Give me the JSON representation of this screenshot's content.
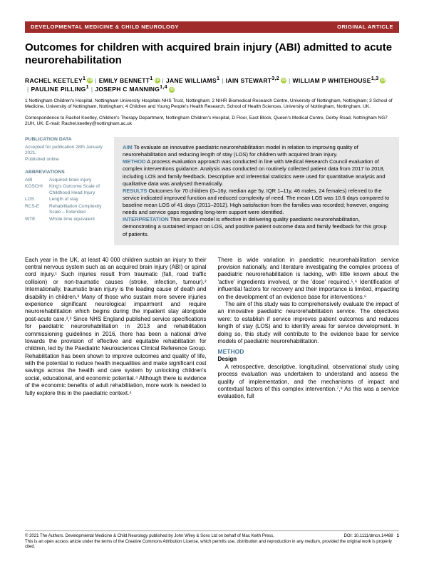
{
  "header": {
    "journal": "DEVELOPMENTAL MEDICINE & CHILD NEUROLOGY",
    "article_type": "ORIGINAL ARTICLE"
  },
  "title": "Outcomes for children with acquired brain injury (ABI) admitted to acute neurorehabilitation",
  "authors": [
    {
      "name": "RACHEL KEETLEY",
      "sup": "1",
      "orcid": true
    },
    {
      "name": "EMILY BENNETT",
      "sup": "1",
      "orcid": true
    },
    {
      "name": "JANE WILLIAMS",
      "sup": "1"
    },
    {
      "name": "IAIN STEWART",
      "sup": "3,2",
      "orcid": true
    },
    {
      "name": "WILLIAM P WHITEHOUSE",
      "sup": "1,3",
      "orcid": true
    },
    {
      "name": "PAULINE PILLING",
      "sup": "1"
    },
    {
      "name": "JOSEPH C MANNING",
      "sup": "1,4",
      "orcid": true
    }
  ],
  "affiliations": "1 Nottingham Children's Hospital, Nottingham University Hospitals NHS Trust, Nottingham; 2 NIHR Biomedical Research Centre, University of Nottingham, Nottingham; 3 School of Medicine, University of Nottingham, Nottingham; 4 Children and Young People's Health Research, School of Health Sciences, University of Nottingham, Nottingham, UK.",
  "correspondence": "Correspondence to Rachel Keetley, Children's Therapy Department, Nottingham Children's Hospital, D Floor, East Block, Queen's Medical Centre, Derby Road, Nottingham NG7 2UH, UK. E-mail: Rachel.keetley@nottingham.ac.uk",
  "sidebar": {
    "pub_heading": "PUBLICATION DATA",
    "pub_text": "Accepted for publication 28th January 2021.\nPublished online",
    "abbrev_heading": "ABBREVIATIONS",
    "abbrevs": [
      {
        "k": "ABI",
        "v": "Acquired brain injury"
      },
      {
        "k": "KOSCHI",
        "v": "King's Outcome Scale of Childhood Head Injury"
      },
      {
        "k": "LOS",
        "v": "Length of stay"
      },
      {
        "k": "RCS-E",
        "v": "Rehabilitation Complexity Scale – Extended"
      },
      {
        "k": "WTE",
        "v": "Whole time equivalent"
      }
    ]
  },
  "abstract": {
    "aim_label": "AIM",
    "aim": " To evaluate an innovative paediatric neurorehabilitation model in relation to improving quality of neurorehabilitation and reducing length of stay (LOS) for children with acquired brain injury.",
    "method_label": "METHOD",
    "method": " A process evaluation approach was conducted in line with Medical Research Council evaluation of complex interventions guidance. Analysis was conducted on routinely collected patient data from 2017 to 2018, including LOS and family feedback. Descriptive and inferential statistics were used for quantitative analysis and qualitative data was analysed thematically.",
    "results_label": "RESULTS",
    "results": " Outcomes for 70 children (0–16y, median age 5y, IQR 1–11y, 46 males, 24 females) referred to the service indicated improved function and reduced complexity of need. The mean LOS was 10.6 days compared to baseline mean LOS of 41 days (2011–2012). High satisfaction from the families was recorded; however, ongoing needs and service gaps regarding long-term support were identified.",
    "interp_label": "INTERPRETATION",
    "interp": " This service model is effective in delivering quality paediatric neurorehabilitation, demonstrating a sustained impact on LOS, and positive patient outcome data and family feedback for this group of patients."
  },
  "body": {
    "col1_p1": "Each year in the UK, at least 40 000 children sustain an injury to their central nervous system such as an acquired brain injury (ABI) or spinal cord injury.¹ Such injuries result from traumatic (fall, road traffic collision) or non-traumatic causes (stroke, infection, tumour).² Internationally, traumatic brain injury is the leading cause of death and disability in children.³ Many of those who sustain more severe injuries experience significant neurological impairment and require neurorehabilitation which begins during the inpatient stay alongside post-acute care.²,³ Since NHS England published service specifications for paediatric neurorehabilitation in 2013 and rehabilitation commissioning guidelines in 2016, there has been a national drive towards the provision of effective and equitable rehabilitation for children, led by the Paediatric Neurosciences Clinical Reference Group. Rehabilitation has been shown to improve outcomes and quality of life, with the potential to reduce health inequalities and make significant cost savings across the health and care system by unlocking children's social, educational, and economic potential.⁴ Although there is evidence of the economic benefits of adult rehabilitation, more work is needed to fully explore this in the paediatric context.⁴",
    "col2_p1": "There is wide variation in paediatric neurorehabilitation service provision nationally, and literature investigating the complex process of paediatric neurorehabilitation is lacking, with little known about the 'active' ingredients involved, or the 'dose' required.⁵,⁶ Identification of influential factors for recovery and their importance is limited, impacting on the development of an evidence base for interventions.⁶",
    "col2_p2": "The aim of this study was to comprehensively evaluate the impact of an innovative paediatric neurorehabilitation service. The objectives were: to establish if service improves patient outcomes and reduces length of stay (LOS) and to identify areas for service development. In doing so, this study will contribute to the evidence base for service models of paediatric neurorehabilitation.",
    "method_heading": "METHOD",
    "design_heading": "Design",
    "col2_p3": "A retrospective, descriptive, longitudinal, observational study using process evaluation was undertaken to understand and assess the quality of implementation, and the mechanisms of impact and contextual factors of this complex intervention.⁷,⁸ As this was a service evaluation, full"
  },
  "footer": {
    "copyright": "© 2021 The Authors. Developmental Medicine & Child Neurology published by John Wiley & Sons Ltd on behalf of Mac Keith Press.",
    "doi": "DOI: 10.1111/dmcn.14488",
    "page": "1",
    "license": "This is an open access article under the terms of the Creative Commons Attribution License, which permits use, distribution and reproduction in any medium, provided the original work is properly cited."
  },
  "colors": {
    "header_bg": "#a02b2b",
    "accent": "#4a7a9a",
    "sidebar_text": "#5a7a8a",
    "abstract_bg": "#e8e8e8",
    "orcid": "#a6ce39"
  }
}
